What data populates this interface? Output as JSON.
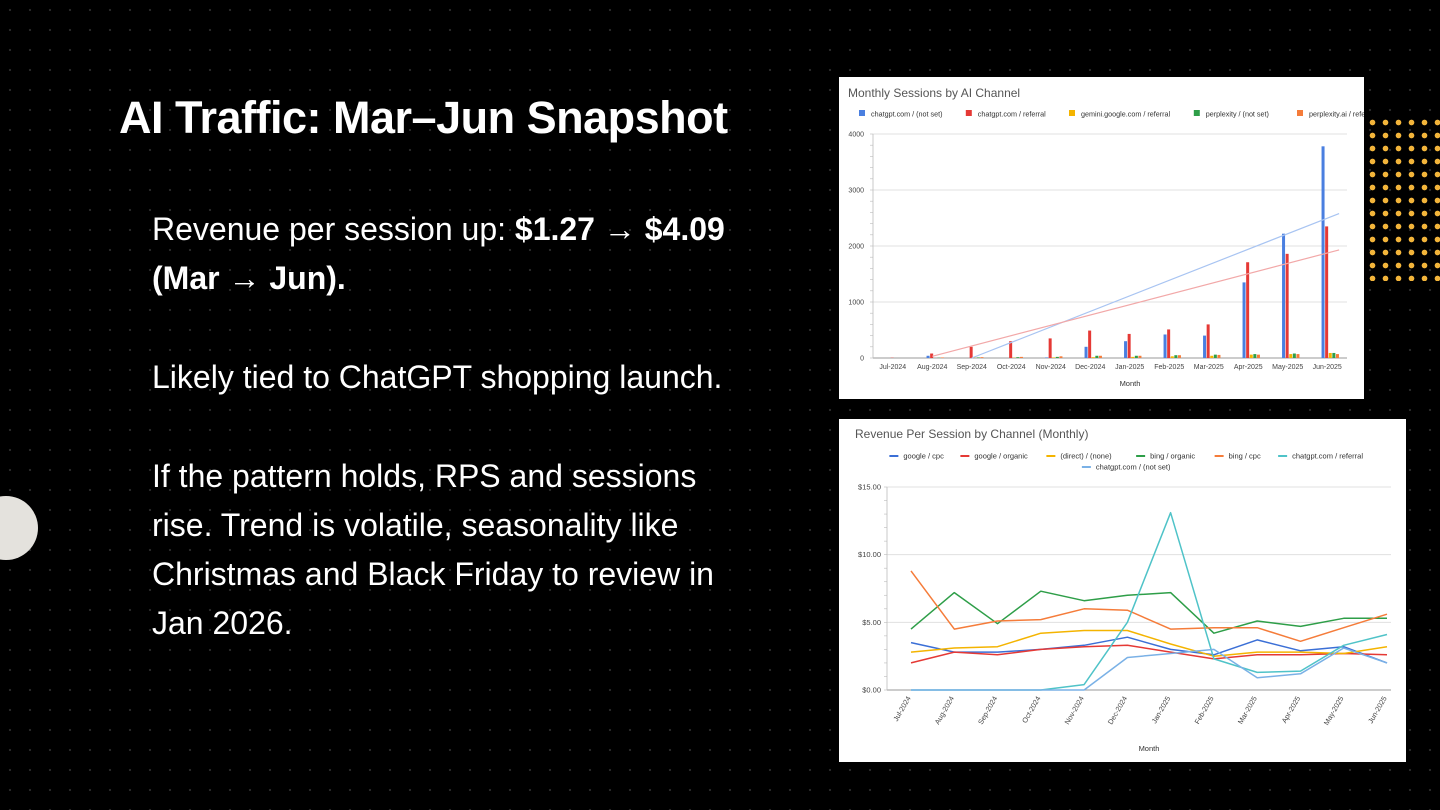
{
  "slide": {
    "title": "AI Traffic: Mar–Jun Snapshot",
    "bullets": [
      {
        "text": "Revenue per session up: ",
        "bold": "$1.27 → $4.09 (Mar → Jun)."
      },
      {
        "text": "Likely tied to ChatGPT shopping launch.",
        "bold": ""
      },
      {
        "text": "If the pattern holds, RPS and sessions rise. Trend is volatile, seasonality like Christmas and Black Friday to review in Jan 2026.",
        "bold": ""
      }
    ]
  },
  "chart_data": [
    {
      "type": "bar",
      "title": "Monthly Sessions by AI Channel",
      "xlabel": "Month",
      "ylabel": "",
      "ylim": [
        0,
        4000
      ],
      "yticks": [
        0,
        1000,
        2000,
        3000,
        4000
      ],
      "grid": true,
      "legend": "top",
      "categories": [
        "Jul-2024",
        "Aug-2024",
        "Sep-2024",
        "Oct-2024",
        "Nov-2024",
        "Dec-2024",
        "Jan-2025",
        "Feb-2025",
        "Mar-2025",
        "Apr-2025",
        "May-2025",
        "Jun-2025"
      ],
      "series": [
        {
          "name": "chatgpt.com / (not set)",
          "color": "#4a7fe0",
          "values": [
            0,
            40,
            0,
            0,
            10,
            200,
            300,
            420,
            400,
            1350,
            2220,
            3780
          ]
        },
        {
          "name": "chatgpt.com / referral",
          "color": "#e53935",
          "values": [
            5,
            80,
            200,
            300,
            350,
            490,
            430,
            510,
            600,
            1710,
            1860,
            2350
          ]
        },
        {
          "name": "gemini.google.com / referral",
          "color": "#f4b400",
          "values": [
            0,
            0,
            5,
            5,
            10,
            15,
            20,
            30,
            40,
            60,
            70,
            90
          ]
        },
        {
          "name": "perplexity / (not set)",
          "color": "#2e9e48",
          "values": [
            0,
            5,
            10,
            15,
            20,
            40,
            40,
            50,
            60,
            70,
            80,
            90
          ]
        },
        {
          "name": "perplexity.ai / referral",
          "color": "#f57c3a",
          "values": [
            0,
            10,
            15,
            20,
            30,
            40,
            40,
            50,
            55,
            60,
            70,
            70
          ]
        }
      ],
      "trendlines": [
        {
          "series": "chatgpt.com / (not set)",
          "color": "#a8c4f2",
          "start": [
            3,
            0
          ],
          "end": [
            12.3,
            2580
          ]
        },
        {
          "series": "chatgpt.com / referral",
          "color": "#f2a8a8",
          "start": [
            2,
            30
          ],
          "end": [
            12.3,
            1930
          ]
        }
      ]
    },
    {
      "type": "line",
      "title": "Revenue Per Session by Channel (Monthly)",
      "xlabel": "Month",
      "ylabel": "",
      "ylim": [
        0,
        15
      ],
      "yticks": [
        "$0.00",
        "$5.00",
        "$10.00",
        "$15.00"
      ],
      "ytick_values": [
        0,
        5,
        10,
        15
      ],
      "grid": true,
      "legend": "top",
      "categories": [
        "Jul-2024",
        "Aug-2024",
        "Sep-2024",
        "Oct-2024",
        "Nov-2024",
        "Dec-2024",
        "Jan-2025",
        "Feb-2025",
        "Mar-2025",
        "Apr-2025",
        "May-2025",
        "Jun-2025"
      ],
      "series": [
        {
          "name": "google / cpc",
          "color": "#3b6fd6",
          "values": [
            3.5,
            2.8,
            2.8,
            3.0,
            3.3,
            3.9,
            3.0,
            2.6,
            3.7,
            2.9,
            3.2,
            2.0
          ]
        },
        {
          "name": "google / organic",
          "color": "#e53935",
          "values": [
            2.0,
            2.8,
            2.6,
            3.0,
            3.2,
            3.3,
            2.8,
            2.3,
            2.6,
            2.6,
            2.7,
            2.6
          ]
        },
        {
          "name": "(direct) / (none)",
          "color": "#f4b400",
          "values": [
            2.8,
            3.1,
            3.2,
            4.2,
            4.4,
            4.4,
            3.4,
            2.5,
            2.8,
            2.8,
            2.7,
            3.2
          ]
        },
        {
          "name": "bing / organic",
          "color": "#2e9e48",
          "values": [
            4.5,
            7.2,
            4.9,
            7.3,
            6.6,
            7.0,
            7.2,
            4.2,
            5.1,
            4.7,
            5.3,
            5.3
          ]
        },
        {
          "name": "bing / cpc",
          "color": "#f57c3a",
          "values": [
            8.8,
            4.5,
            5.1,
            5.2,
            6.0,
            5.9,
            4.5,
            4.6,
            4.6,
            3.6,
            4.6,
            5.6
          ]
        },
        {
          "name": "chatgpt.com / referral",
          "color": "#4fc3c8",
          "values": [
            0.0,
            0.0,
            0.0,
            0.0,
            0.4,
            5.0,
            13.1,
            2.3,
            1.3,
            1.4,
            3.3,
            4.1
          ]
        },
        {
          "name": "chatgpt.com / (not set)",
          "color": "#7ab1e6",
          "values": [
            0.0,
            0.0,
            0.0,
            0.0,
            0.0,
            2.4,
            2.7,
            3.0,
            0.9,
            1.2,
            3.1,
            2.0
          ]
        }
      ]
    }
  ]
}
